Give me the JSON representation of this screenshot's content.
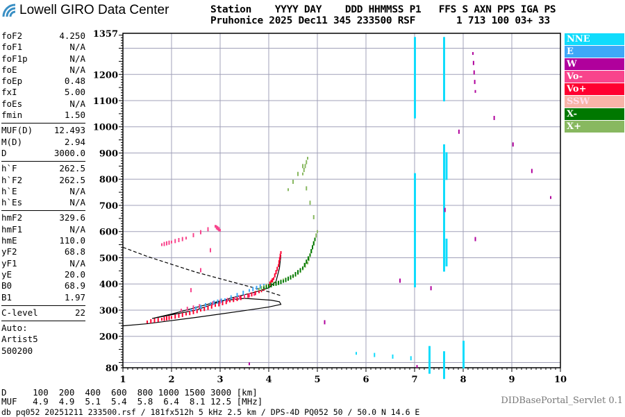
{
  "header": {
    "logo_text": "Lowell GIRO Data Center",
    "line1": "Station    YYYY DAY    DDD HHMMSS P1   FFS S AXN PPS IGA PS",
    "line2": "Pruhonice 2025 Dec11 345 233500 RSF       1 713 100 03+ 33"
  },
  "params": [
    [
      {
        "k": "foF2",
        "v": "4.250"
      },
      {
        "k": "foF1",
        "v": "N/A"
      },
      {
        "k": "foF1p",
        "v": "N/A"
      },
      {
        "k": "foE",
        "v": "N/A"
      },
      {
        "k": "foEp",
        "v": "0.48"
      },
      {
        "k": "fxI",
        "v": "5.00"
      },
      {
        "k": "foEs",
        "v": "N/A"
      },
      {
        "k": "fmin",
        "v": "1.50"
      }
    ],
    [
      {
        "k": "MUF(D)",
        "v": "12.493"
      },
      {
        "k": "M(D)",
        "v": "2.94"
      },
      {
        "k": "D",
        "v": "3000.0"
      }
    ],
    [
      {
        "k": "h`F",
        "v": "262.5"
      },
      {
        "k": "h`F2",
        "v": "262.5"
      },
      {
        "k": "h`E",
        "v": "N/A"
      },
      {
        "k": "h`Es",
        "v": "N/A"
      }
    ],
    [
      {
        "k": "hmF2",
        "v": "329.6"
      },
      {
        "k": "hmF1",
        "v": "N/A"
      },
      {
        "k": "hmE",
        "v": "110.0"
      },
      {
        "k": "yF2",
        "v": "68.8"
      },
      {
        "k": "yF1",
        "v": "N/A"
      },
      {
        "k": "yE",
        "v": "20.0"
      },
      {
        "k": "B0",
        "v": "68.9"
      },
      {
        "k": "B1",
        "v": "1.97"
      }
    ],
    [
      {
        "k": "C-level",
        "v": "22"
      }
    ]
  ],
  "autoscaling": [
    "Auto:",
    "Artist5",
    "500200"
  ],
  "legend": [
    {
      "label": "NNE",
      "color": "#10dcfc"
    },
    {
      "label": "E",
      "color": "#3ea8f8"
    },
    {
      "label": "W",
      "color": "#b0009c"
    },
    {
      "label": "Vo-",
      "color": "#f8448c"
    },
    {
      "label": "Vo+",
      "color": "#ff0030"
    },
    {
      "label": "SSW",
      "color": "#f8b4a8"
    },
    {
      "label": "X-",
      "color": "#007800"
    },
    {
      "label": "X+",
      "color": "#88b860"
    }
  ],
  "muf_table": {
    "d_line": "D     100  200  400  600  800 1000 1500 3000 [km]",
    "muf_line": "MUF   4.9  4.9  5.1  5.4  5.8  6.4  8.1 12.5 [MHz]"
  },
  "footer": "db pq052 20251211 233500.rsf / 181fx512h 5 kHz 2.5 km / DPS-4D PQ052 50 / 50.0 N 14.6 E",
  "servlet": "DIDBasePortal_Servlet 0.1",
  "chart_data": {
    "type": "scatter",
    "xlim": [
      1,
      10
    ],
    "ylim": [
      80,
      1357
    ],
    "xticks": [
      "1",
      "2",
      "3",
      "4",
      "5",
      "6",
      "7",
      "8",
      "9",
      "10"
    ],
    "yticks": [
      "1357",
      "1200",
      "1100",
      "1000",
      "900",
      "800",
      "700",
      "600",
      "500",
      "400",
      "300",
      "200",
      "80"
    ],
    "grid": true,
    "echo_traces": [
      {
        "color": "#ff0030",
        "points": [
          [
            1.5,
            255
          ],
          [
            1.8,
            265
          ],
          [
            2.0,
            272
          ],
          [
            2.3,
            285
          ],
          [
            2.6,
            300
          ],
          [
            2.9,
            318
          ],
          [
            3.2,
            335
          ],
          [
            3.5,
            350
          ],
          [
            3.8,
            370
          ],
          [
            4.0,
            395
          ],
          [
            4.1,
            420
          ],
          [
            4.2,
            470
          ],
          [
            4.25,
            520
          ]
        ]
      },
      {
        "color": "#f8448c",
        "points": [
          [
            1.8,
            550
          ],
          [
            2.0,
            560
          ],
          [
            2.3,
            575
          ],
          [
            2.9,
            620
          ],
          [
            3.0,
            605
          ],
          [
            2.2,
            300
          ],
          [
            2.7,
            320
          ],
          [
            3.3,
            345
          ],
          [
            3.7,
            360
          ]
        ]
      },
      {
        "color": "#3ea8f8",
        "points": [
          [
            2.4,
            300
          ],
          [
            2.8,
            325
          ],
          [
            3.1,
            340
          ],
          [
            3.6,
            375
          ],
          [
            3.9,
            395
          ]
        ]
      },
      {
        "color": "#88b860",
        "points": [
          [
            3.8,
            380
          ],
          [
            4.0,
            395
          ],
          [
            4.2,
            405
          ],
          [
            4.4,
            420
          ],
          [
            4.6,
            440
          ],
          [
            4.8,
            480
          ],
          [
            4.9,
            540
          ],
          [
            5.0,
            600
          ],
          [
            4.7,
            820
          ],
          [
            4.8,
            880
          ],
          [
            4.4,
            760
          ]
        ]
      },
      {
        "color": "#007800",
        "points": [
          [
            3.9,
            385
          ],
          [
            4.1,
            398
          ],
          [
            4.3,
            410
          ],
          [
            4.5,
            430
          ],
          [
            4.7,
            460
          ],
          [
            4.85,
            510
          ],
          [
            4.95,
            570
          ]
        ]
      },
      {
        "color": "#10dcfc",
        "points": [
          [
            7.0,
            1290
          ],
          [
            7.0,
            1240
          ],
          [
            7.0,
            1180
          ],
          [
            7.0,
            1085
          ],
          [
            7.0,
            770
          ],
          [
            7.0,
            700
          ],
          [
            7.0,
            620
          ],
          [
            7.0,
            550
          ],
          [
            7.0,
            470
          ],
          [
            7.0,
            440
          ],
          [
            7.6,
            1290
          ],
          [
            7.6,
            1220
          ],
          [
            7.6,
            1150
          ],
          [
            7.6,
            880
          ],
          [
            7.6,
            800
          ],
          [
            7.6,
            700
          ],
          [
            7.6,
            600
          ],
          [
            7.6,
            500
          ],
          [
            7.65,
            850
          ],
          [
            7.65,
            520
          ],
          [
            5.8,
            135
          ],
          [
            7.3,
            110
          ],
          [
            7.6,
            90
          ],
          [
            8.0,
            130
          ]
        ]
      },
      {
        "color": "#b0009c",
        "points": [
          [
            3.6,
            95
          ],
          [
            9.8,
            730
          ],
          [
            8.25,
            1135
          ],
          [
            8.2,
            1280
          ],
          [
            7.05,
            85
          ]
        ]
      }
    ],
    "dashed_curve": [
      [
        1.0,
        540
      ],
      [
        1.5,
        505
      ],
      [
        2.0,
        475
      ],
      [
        2.5,
        445
      ],
      [
        3.0,
        420
      ],
      [
        3.5,
        395
      ],
      [
        4.0,
        370
      ],
      [
        4.25,
        355
      ]
    ],
    "profile_curve": [
      [
        1.0,
        240
      ],
      [
        1.5,
        248
      ],
      [
        2.0,
        260
      ],
      [
        2.5,
        272
      ],
      [
        3.0,
        285
      ],
      [
        3.5,
        298
      ],
      [
        4.0,
        312
      ],
      [
        4.25,
        322
      ],
      [
        4.22,
        332
      ],
      [
        4.05,
        338
      ],
      [
        3.5,
        345
      ],
      [
        3.0,
        335
      ],
      [
        2.5,
        310
      ],
      [
        2.0,
        285
      ],
      [
        1.6,
        268
      ],
      [
        2.5,
        300
      ],
      [
        3.2,
        345
      ],
      [
        3.7,
        368
      ],
      [
        4.0,
        385
      ],
      [
        4.15,
        410
      ],
      [
        4.22,
        460
      ],
      [
        4.25,
        510
      ]
    ]
  }
}
